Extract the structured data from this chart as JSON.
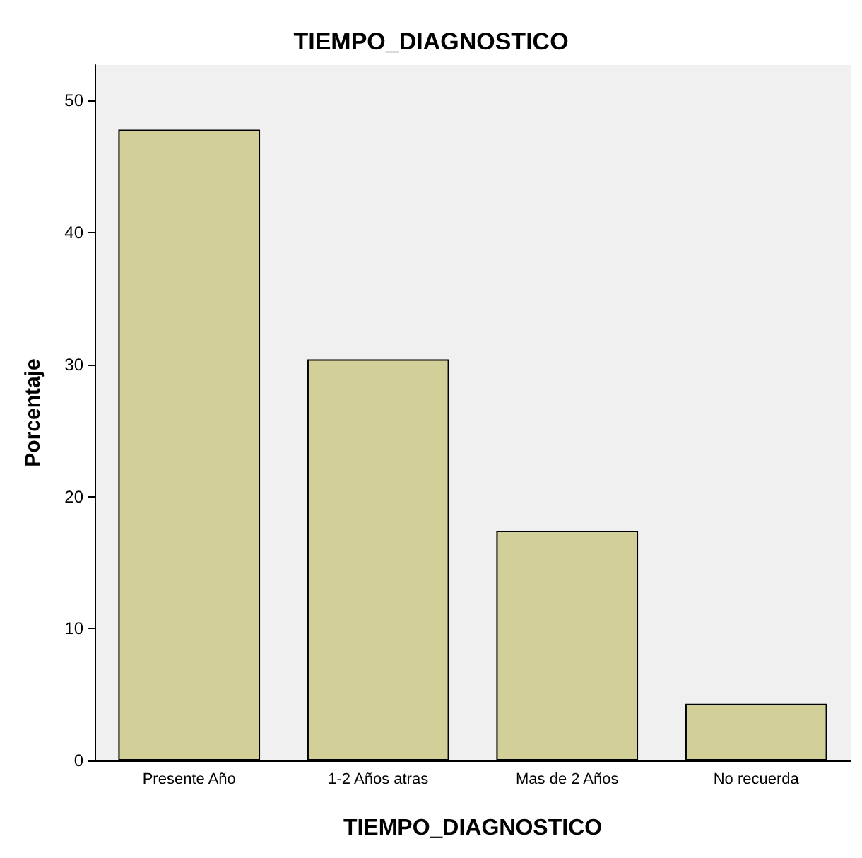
{
  "chart_data": {
    "type": "bar",
    "title": "TIEMPO_DIAGNOSTICO",
    "xlabel": "TIEMPO_DIAGNOSTICO",
    "ylabel": "Porcentaje",
    "categories": [
      "Presente Año",
      "1-2 Años atras",
      "Mas de 2 Años",
      "No recuerda"
    ],
    "values": [
      47.8,
      30.4,
      17.4,
      4.3
    ],
    "color": "#d3cf99",
    "ylim": [
      0,
      52.7
    ],
    "yticks": [
      0,
      10,
      20,
      30,
      40,
      50
    ],
    "grid": false
  }
}
